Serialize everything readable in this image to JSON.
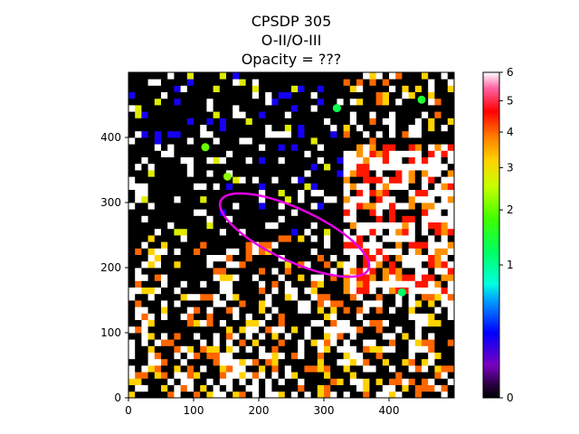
{
  "chart_data": {
    "type": "heatmap",
    "title_lines": [
      "CPSDP 305",
      "O-II/O-III",
      "Opacity = ???"
    ],
    "xlabel": "",
    "ylabel": "",
    "xlim": [
      0,
      500
    ],
    "ylim": [
      0,
      500
    ],
    "x_ticks": [
      0,
      100,
      200,
      300,
      400
    ],
    "y_ticks": [
      0,
      100,
      200,
      300,
      400
    ],
    "colorbar": {
      "colormap": "gist_ncar-like (black → purple → blue → cyan → green → yellow → orange → red → pink → white)",
      "ticks": [
        0,
        1,
        2,
        3,
        4,
        5,
        6
      ],
      "range": [
        0,
        6
      ],
      "scale": "nonlinear (sqrt-like)"
    },
    "grid": false,
    "annotations": [
      {
        "type": "ellipse",
        "color": "#e600e6",
        "center": [
          255,
          250
        ],
        "semi_major": 125,
        "semi_minor": 40,
        "angle_deg": -25
      }
    ],
    "regions": [
      {
        "description": "upper-right bright region",
        "x": [
          330,
          500
        ],
        "y": [
          150,
          390
        ],
        "typical_value": 4.5
      },
      {
        "description": "bottom strip, mixed",
        "x": [
          0,
          500
        ],
        "y": [
          0,
          160
        ],
        "typical_value": 4.0
      },
      {
        "description": "top-left mostly dark",
        "x": [
          0,
          330
        ],
        "y": [
          250,
          500
        ],
        "typical_value": 0.2
      }
    ],
    "notable_points": [
      {
        "x": 152,
        "y": 340,
        "value": 2.2,
        "note": "green blob"
      },
      {
        "x": 420,
        "y": 162,
        "value": 1.2,
        "note": "green/cyan blob"
      },
      {
        "x": 118,
        "y": 385,
        "value": 2.0
      },
      {
        "x": 320,
        "y": 445,
        "value": 1.3
      },
      {
        "x": 450,
        "y": 458,
        "value": 1.5
      }
    ]
  }
}
